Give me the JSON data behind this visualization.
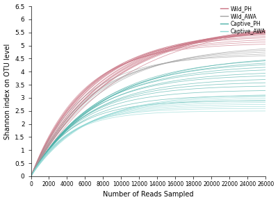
{
  "title": "",
  "xlabel": "Number of Reads Sampled",
  "ylabel": "Shannon index on OTU level",
  "xlim": [
    0,
    26000
  ],
  "ylim": [
    0,
    6.5
  ],
  "xticks": [
    0,
    2000,
    4000,
    6000,
    8000,
    10000,
    12000,
    14000,
    16000,
    18000,
    20000,
    22000,
    24000,
    26000
  ],
  "yticks": [
    0,
    0.5,
    1.0,
    1.5,
    2.0,
    2.5,
    3.0,
    3.5,
    4.0,
    4.5,
    5.0,
    5.5,
    6.0,
    6.5
  ],
  "groups": {
    "Wild_PH": {
      "color": "#c87080",
      "alpha": 0.7,
      "asymptotes": [
        5.1,
        5.2,
        5.3,
        5.38,
        5.46,
        5.52,
        5.58,
        5.62,
        5.66,
        5.7,
        5.74,
        5.78,
        5.82,
        5.86,
        5.9,
        5.93,
        5.96
      ],
      "rates": [
        0.00018,
        0.00017,
        0.00016,
        0.00016,
        0.00015,
        0.00015,
        0.00014,
        0.00014,
        0.00013,
        0.00013,
        0.00012,
        0.00012,
        0.00012,
        0.00011,
        0.00011,
        0.00011,
        0.0001
      ]
    },
    "Wild_AWA": {
      "color": "#a0a0a0",
      "alpha": 0.7,
      "asymptotes": [
        4.65,
        4.75,
        4.85,
        4.95,
        5.05
      ],
      "rates": [
        0.00018,
        0.00016,
        0.00015,
        0.00014,
        0.00013
      ]
    },
    "Captive_PH": {
      "color": "#4ab0a8",
      "alpha": 0.7,
      "asymptotes": [
        2.9,
        3.1,
        3.3,
        3.48,
        3.62,
        3.76,
        3.9,
        4.02,
        4.15,
        4.28,
        4.38,
        4.48,
        4.57,
        4.65
      ],
      "rates": [
        0.00022,
        0.0002,
        0.00019,
        0.00018,
        0.00017,
        0.00016,
        0.00016,
        0.00015,
        0.00015,
        0.00014,
        0.00014,
        0.00013,
        0.00013,
        0.00012
      ]
    },
    "Captive_AWA": {
      "color": "#90d8d4",
      "alpha": 0.7,
      "asymptotes": [
        2.5,
        2.6,
        2.68,
        2.76,
        2.84,
        2.92,
        3.0,
        3.08,
        3.16
      ],
      "rates": [
        0.00025,
        0.00024,
        0.00022,
        0.00021,
        0.0002,
        0.00019,
        0.00018,
        0.00017,
        0.00016
      ]
    }
  },
  "legend_order": [
    "Wild_PH",
    "Wild_AWA",
    "Captive_PH",
    "Captive_AWA"
  ],
  "legend_colors": {
    "Wild_PH": "#c87080",
    "Wild_AWA": "#a0a0a0",
    "Captive_PH": "#4ab0a8",
    "Captive_AWA": "#90d8d4"
  },
  "figsize": [
    4.0,
    2.91
  ],
  "dpi": 100
}
